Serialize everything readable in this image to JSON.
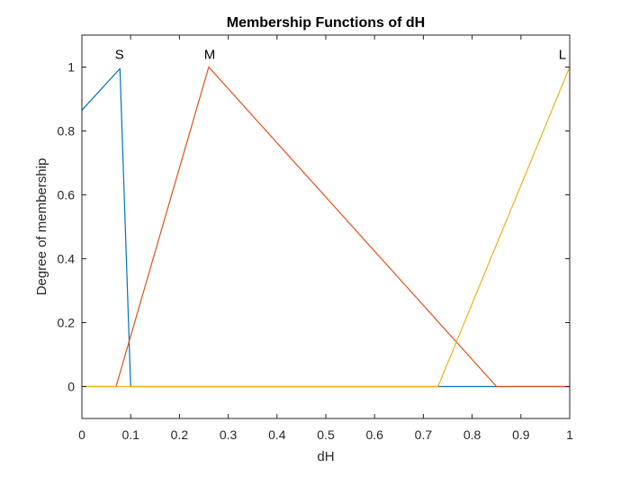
{
  "chart_data": {
    "type": "line",
    "title": "Membership Functions of dH",
    "xlabel": "dH",
    "ylabel": "Degree of membership",
    "xlim": [
      0,
      1
    ],
    "ylim": [
      -0.1,
      1.1
    ],
    "x_ticks": [
      0,
      0.1,
      0.2,
      0.3,
      0.4,
      0.5,
      0.6,
      0.7,
      0.8,
      0.9,
      1
    ],
    "x_tick_labels": [
      "0",
      "0.1",
      "0.2",
      "0.3",
      "0.4",
      "0.5",
      "0.6",
      "0.7",
      "0.8",
      "0.9",
      "1"
    ],
    "y_ticks": [
      0,
      0.2,
      0.4,
      0.6,
      0.8,
      1
    ],
    "y_tick_labels": [
      "0",
      "0.2",
      "0.4",
      "0.6",
      "0.8",
      "1"
    ],
    "grid": false,
    "series": [
      {
        "name": "S",
        "color": "#0072BD",
        "x": [
          0,
          0.078,
          0.1,
          1
        ],
        "y": [
          0.865,
          0.995,
          0,
          0
        ]
      },
      {
        "name": "M",
        "color": "#D95319",
        "x": [
          0,
          0.07,
          0.26,
          0.85,
          1
        ],
        "y": [
          0,
          0,
          1,
          0,
          0
        ]
      },
      {
        "name": "L",
        "color": "#EDB120",
        "x": [
          0,
          0.73,
          1
        ],
        "y": [
          0,
          0,
          1
        ]
      }
    ],
    "annotations": [
      {
        "text": "S",
        "x": 0.077,
        "y": 1.025
      },
      {
        "text": "M",
        "x": 0.262,
        "y": 1.025
      },
      {
        "text": "L",
        "x": 0.985,
        "y": 1.025
      }
    ]
  }
}
